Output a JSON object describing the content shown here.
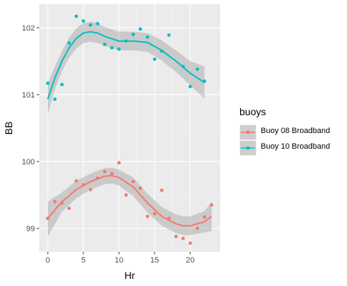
{
  "chart_data": {
    "type": "scatter",
    "xlabel": "Hr",
    "ylabel": "BB",
    "xlim": [
      -1.2,
      24.2
    ],
    "ylim": [
      98.65,
      102.35
    ],
    "x_ticks": [
      0,
      5,
      10,
      15,
      20
    ],
    "y_ticks": [
      99,
      100,
      101,
      102
    ],
    "x_tick_labels": [
      "0",
      "5",
      "10",
      "15",
      "20"
    ],
    "y_tick_labels": [
      "99",
      "100",
      "101",
      "102"
    ],
    "grid": true,
    "smoothing": "loess with confidence band",
    "legend": {
      "title": "buoys",
      "placement": "right"
    },
    "series": [
      {
        "name": "Buoy 08 Broadband",
        "color": "#F8766D",
        "points": [
          [
            0,
            99.15
          ],
          [
            1,
            99.4
          ],
          [
            2,
            99.38
          ],
          [
            3,
            99.3
          ],
          [
            4,
            99.71
          ],
          [
            5,
            99.65
          ],
          [
            6,
            99.58
          ],
          [
            7,
            99.75
          ],
          [
            8,
            99.85
          ],
          [
            9,
            99.82
          ],
          [
            10,
            99.98
          ],
          [
            11,
            99.5
          ],
          [
            12,
            99.7
          ],
          [
            13,
            99.6
          ],
          [
            14,
            99.18
          ],
          [
            15,
            99.22
          ],
          [
            16,
            99.57
          ],
          [
            17,
            99.15
          ],
          [
            18,
            98.88
          ],
          [
            19,
            98.85
          ],
          [
            20,
            98.78
          ],
          [
            21,
            99.0
          ],
          [
            22,
            99.17
          ],
          [
            23,
            99.35
          ]
        ],
        "fit": [
          [
            0,
            99.15
          ],
          [
            2,
            99.4
          ],
          [
            4,
            99.58
          ],
          [
            6,
            99.7
          ],
          [
            8,
            99.78
          ],
          [
            9,
            99.79
          ],
          [
            10,
            99.76
          ],
          [
            12,
            99.62
          ],
          [
            14,
            99.38
          ],
          [
            16,
            99.18
          ],
          [
            18,
            99.07
          ],
          [
            19,
            99.04
          ],
          [
            20,
            99.04
          ],
          [
            22,
            99.1
          ],
          [
            23,
            99.18
          ]
        ],
        "band": [
          [
            0,
            99.4,
            98.88
          ],
          [
            2,
            99.54,
            99.25
          ],
          [
            4,
            99.71,
            99.45
          ],
          [
            6,
            99.82,
            99.58
          ],
          [
            8,
            99.9,
            99.66
          ],
          [
            9,
            99.91,
            99.67
          ],
          [
            10,
            99.88,
            99.64
          ],
          [
            12,
            99.76,
            99.48
          ],
          [
            14,
            99.52,
            99.24
          ],
          [
            16,
            99.32,
            99.04
          ],
          [
            18,
            99.21,
            98.93
          ],
          [
            19,
            99.18,
            98.9
          ],
          [
            20,
            99.18,
            98.9
          ],
          [
            22,
            99.26,
            98.94
          ],
          [
            23,
            99.4,
            98.96
          ]
        ]
      },
      {
        "name": "Buoy 10 Broadband",
        "color": "#00BFC4",
        "points": [
          [
            0,
            101.17
          ],
          [
            1,
            100.93
          ],
          [
            2,
            101.15
          ],
          [
            3,
            101.77
          ],
          [
            4,
            102.17
          ],
          [
            5,
            102.1
          ],
          [
            6,
            102.04
          ],
          [
            7,
            102.06
          ],
          [
            8,
            101.75
          ],
          [
            9,
            101.7
          ],
          [
            10,
            101.68
          ],
          [
            11,
            101.8
          ],
          [
            12,
            101.9
          ],
          [
            13,
            101.98
          ],
          [
            14,
            101.86
          ],
          [
            15,
            101.53
          ],
          [
            16,
            101.65
          ],
          [
            17,
            101.89
          ],
          [
            19,
            101.42
          ],
          [
            20,
            101.12
          ],
          [
            21,
            101.38
          ],
          [
            22,
            101.2
          ]
        ],
        "fit": [
          [
            0,
            100.93
          ],
          [
            1,
            101.25
          ],
          [
            2,
            101.5
          ],
          [
            3,
            101.7
          ],
          [
            4,
            101.84
          ],
          [
            5,
            101.92
          ],
          [
            6,
            101.94
          ],
          [
            7,
            101.92
          ],
          [
            8,
            101.87
          ],
          [
            10,
            101.8
          ],
          [
            12,
            101.8
          ],
          [
            14,
            101.78
          ],
          [
            16,
            101.66
          ],
          [
            18,
            101.5
          ],
          [
            20,
            101.32
          ],
          [
            22,
            101.18
          ]
        ],
        "band": [
          [
            0,
            101.17,
            100.7
          ],
          [
            1,
            101.42,
            101.08
          ],
          [
            2,
            101.65,
            101.35
          ],
          [
            3,
            101.85,
            101.55
          ],
          [
            4,
            101.99,
            101.69
          ],
          [
            5,
            102.07,
            101.77
          ],
          [
            6,
            102.09,
            101.79
          ],
          [
            7,
            102.07,
            101.77
          ],
          [
            8,
            102.01,
            101.73
          ],
          [
            10,
            101.94,
            101.66
          ],
          [
            12,
            101.94,
            101.66
          ],
          [
            14,
            101.92,
            101.64
          ],
          [
            16,
            101.81,
            101.51
          ],
          [
            18,
            101.66,
            101.34
          ],
          [
            20,
            101.5,
            101.14
          ],
          [
            22,
            101.42,
            100.94
          ]
        ]
      }
    ]
  }
}
